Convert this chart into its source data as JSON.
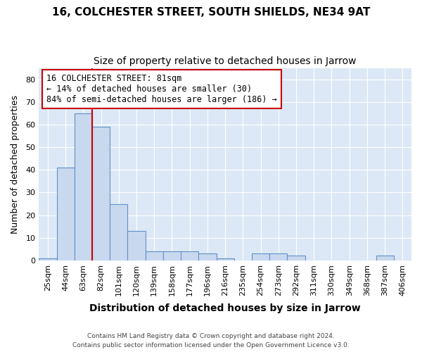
{
  "title1": "16, COLCHESTER STREET, SOUTH SHIELDS, NE34 9AT",
  "title2": "Size of property relative to detached houses in Jarrow",
  "xlabel": "Distribution of detached houses by size in Jarrow",
  "ylabel": "Number of detached properties",
  "categories": [
    "25sqm",
    "44sqm",
    "63sqm",
    "82sqm",
    "101sqm",
    "120sqm",
    "139sqm",
    "158sqm",
    "177sqm",
    "196sqm",
    "216sqm",
    "235sqm",
    "254sqm",
    "273sqm",
    "292sqm",
    "311sqm",
    "330sqm",
    "349sqm",
    "368sqm",
    "387sqm",
    "406sqm"
  ],
  "bar_values": [
    1,
    41,
    65,
    59,
    25,
    13,
    4,
    4,
    4,
    3,
    1,
    0,
    3,
    3,
    2,
    0,
    0,
    0,
    0,
    2,
    0
  ],
  "bar_color": "#c8d8ee",
  "bar_edge_color": "#6090c8",
  "bar_width": 1.0,
  "ylim": [
    0,
    85
  ],
  "yticks": [
    0,
    10,
    20,
    30,
    40,
    50,
    60,
    70,
    80
  ],
  "vline_index": 3,
  "vline_color": "#cc0000",
  "annotation_text": "16 COLCHESTER STREET: 81sqm\n← 14% of detached houses are smaller (30)\n84% of semi-detached houses are larger (186) →",
  "annotation_box_color": "#ffffff",
  "annotation_box_edge_color": "#cc0000",
  "footer1": "Contains HM Land Registry data © Crown copyright and database right 2024.",
  "footer2": "Contains public sector information licensed under the Open Government Licence v3.0.",
  "bg_color": "#ffffff",
  "plot_bg_color": "#dce8f5",
  "grid_color": "#ffffff",
  "title1_fontsize": 11,
  "title2_fontsize": 10,
  "xlabel_fontsize": 10,
  "ylabel_fontsize": 9,
  "tick_fontsize": 8,
  "annotation_fontsize": 8.5
}
